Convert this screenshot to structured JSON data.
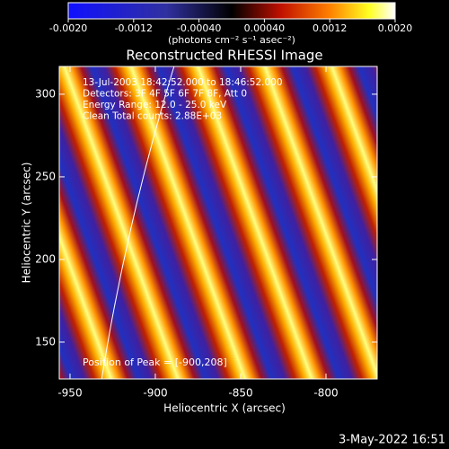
{
  "chart_data": {
    "type": "image",
    "title": "Reconstructed RHESSI Image",
    "x_label": "Heliocentric X (arcsec)",
    "y_label": "Heliocentric Y (arcsec)",
    "xlim": [
      -956.3,
      -770
    ],
    "ylim": [
      127.7,
      316.8
    ],
    "xticks": [
      -950,
      -900,
      -850,
      -800
    ],
    "yticks": [
      150,
      200,
      250,
      300
    ],
    "colorbar": {
      "lim": [
        -0.002,
        0.002
      ],
      "ticks": [
        {
          "value": -0.002,
          "label": "-0.0020"
        },
        {
          "value": -0.0012,
          "label": "-0.0012"
        },
        {
          "value": -0.0004,
          "label": "-0.00040"
        },
        {
          "value": 0.0004,
          "label": "0.00040"
        },
        {
          "value": 0.0012,
          "label": "0.0012"
        },
        {
          "value": 0.002,
          "label": "0.0020"
        }
      ],
      "label": "(photons cm⁻² s⁻¹ asec⁻²)"
    },
    "annotations": [
      "13-Jul-2003 18:42:52.000 to 18:46:52.000",
      "Detectors: 3F 4F 5F 6F 7F 8F, Att 0",
      "Energy Range: 12.0 - 25.0 keV",
      "Clean  Total counts: 2.88E+03"
    ],
    "peak_note": "Position of Peak = [-900,208]",
    "footer": "3-May-2022 16:51"
  }
}
